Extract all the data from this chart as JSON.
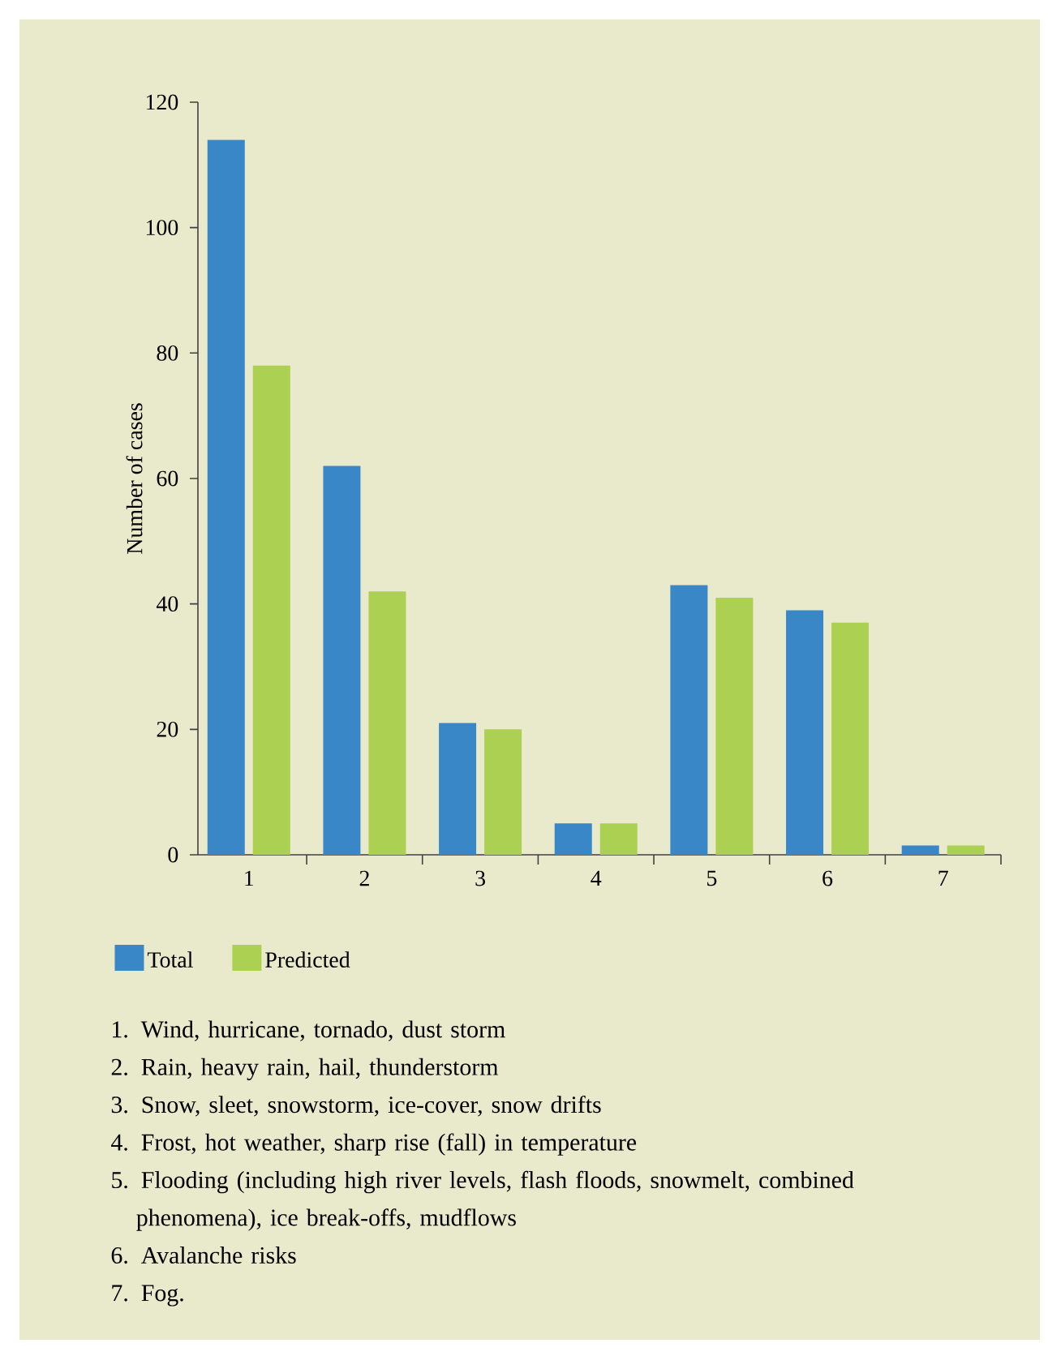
{
  "chart_data": {
    "type": "bar",
    "categories": [
      "1",
      "2",
      "3",
      "4",
      "5",
      "6",
      "7"
    ],
    "series": [
      {
        "name": "Total",
        "color": "#3a87c8",
        "values": [
          114,
          62,
          21,
          5,
          43,
          39,
          1.5
        ]
      },
      {
        "name": "Predicted",
        "color": "#acd152",
        "values": [
          78,
          42,
          20,
          5,
          41,
          37,
          1.5
        ]
      }
    ],
    "ylim": [
      0,
      120
    ],
    "yticks": [
      0,
      20,
      40,
      60,
      80,
      100,
      120
    ],
    "ylabel": "Number of cases",
    "legend": "bottom left",
    "annotations": [
      "1. Wind, hurricane, tornado, dust storm",
      "2. Rain, heavy rain, hail, thunderstorm",
      "3. Snow, sleet, snowstorm, ice-cover, snow drifts",
      "4. Frost, hot weather, sharp rise (fall) in temperature",
      "5. Flooding (including high river levels, flash floods, snowmelt, combined phenomena), ice break-offs, mudflows",
      "6. Avalanche risks",
      "7. Fog."
    ]
  }
}
